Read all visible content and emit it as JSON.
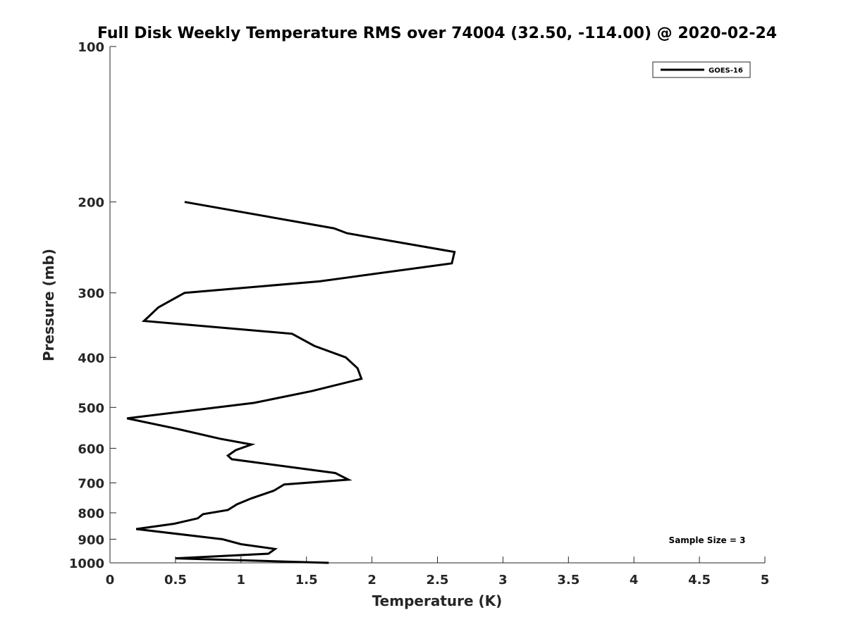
{
  "chart_data": {
    "type": "line",
    "title": "Full Disk Weekly Temperature RMS over 74004 (32.50, -114.00) @ 2020-02-24",
    "xlabel": "Temperature (K)",
    "ylabel": "Pressure (mb)",
    "xlim": [
      0,
      5
    ],
    "ylim": [
      100,
      1000
    ],
    "yscale": "log",
    "y_reversed": true,
    "grid": false,
    "legend_position": "top-right",
    "x_ticks": [
      "0",
      "0.5",
      "1",
      "1.5",
      "2",
      "2.5",
      "3",
      "3.5",
      "4",
      "4.5",
      "5"
    ],
    "y_ticks": [
      "100",
      "200",
      "300",
      "400",
      "500",
      "600",
      "700",
      "800",
      "900",
      "1000"
    ],
    "annotation": "Sample Size = 3",
    "series": [
      {
        "name": "GOES-16",
        "color": "#000000",
        "points": [
          [
            0.57,
            200
          ],
          [
            1.71,
            225
          ],
          [
            1.81,
            230
          ],
          [
            2.63,
            250
          ],
          [
            2.61,
            263
          ],
          [
            1.82,
            280
          ],
          [
            1.6,
            285
          ],
          [
            0.57,
            300
          ],
          [
            0.37,
            320
          ],
          [
            0.26,
            340
          ],
          [
            1.39,
            360
          ],
          [
            1.56,
            380
          ],
          [
            1.8,
            400
          ],
          [
            1.89,
            420
          ],
          [
            1.92,
            440
          ],
          [
            1.54,
            465
          ],
          [
            1.1,
            490
          ],
          [
            0.54,
            510
          ],
          [
            0.13,
            525
          ],
          [
            0.51,
            550
          ],
          [
            0.84,
            575
          ],
          [
            1.08,
            590
          ],
          [
            0.96,
            605
          ],
          [
            0.9,
            620
          ],
          [
            0.93,
            630
          ],
          [
            1.72,
            670
          ],
          [
            1.82,
            690
          ],
          [
            1.33,
            705
          ],
          [
            1.25,
            725
          ],
          [
            1.08,
            750
          ],
          [
            0.97,
            770
          ],
          [
            0.9,
            790
          ],
          [
            0.71,
            805
          ],
          [
            0.67,
            820
          ],
          [
            0.49,
            840
          ],
          [
            0.2,
            860
          ],
          [
            0.86,
            900
          ],
          [
            1.0,
            920
          ],
          [
            1.26,
            940
          ],
          [
            1.21,
            960
          ],
          [
            0.5,
            980
          ],
          [
            1.67,
            1000
          ]
        ]
      }
    ]
  }
}
